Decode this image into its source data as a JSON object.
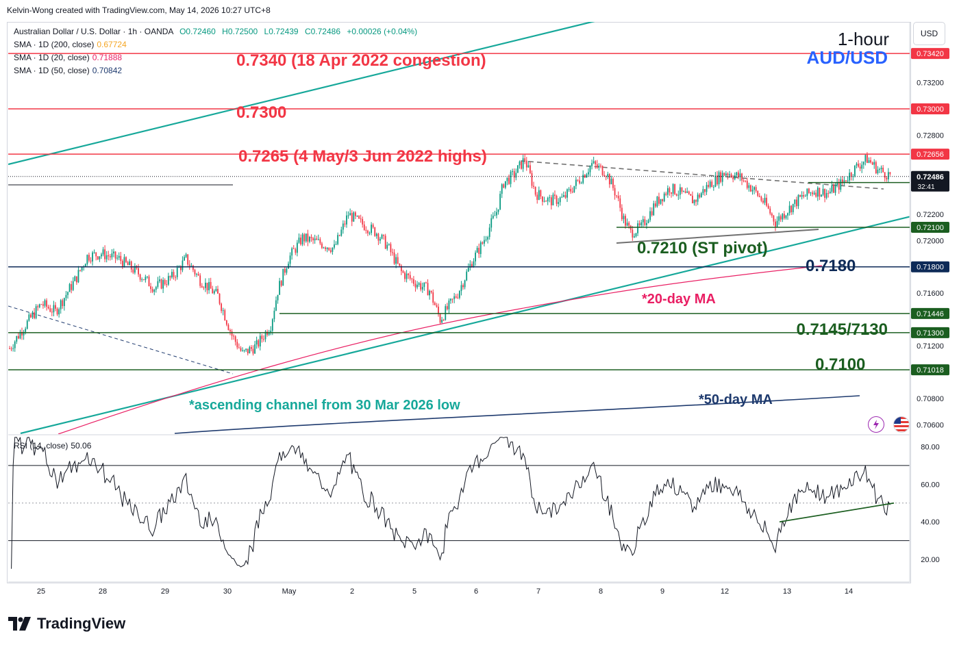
{
  "header": {
    "created_by": "Kelvin-Wong created with TradingView.com, May 14, 2026 10:27 UTC+8"
  },
  "legend": {
    "symbol": "Australian Dollar / U.S. Dollar · 1h · OANDA",
    "open": "O0.72460",
    "high": "H0.72500",
    "low": "L0.72439",
    "close": "C0.72486",
    "change": "+0.00026 (+0.04%)",
    "sma200_label": "SMA · 1D (200, close)",
    "sma200_value": "0.67724",
    "sma20_label": "SMA · 1D (20, close)",
    "sma20_value": "0.71888",
    "sma50_label": "SMA · 1D (50, close)",
    "sma50_value": "0.70842",
    "rsi_label": "RSI (14, close)",
    "rsi_value": "50.06"
  },
  "currency_button": "USD",
  "brand": "TradingView",
  "colors": {
    "up": "#089981",
    "down": "#f23645",
    "resistance": "#f23645",
    "support": "#1b5e20",
    "navy": "#0d2a57",
    "channel": "#16a89a",
    "ma20": "#e91e63",
    "ma50": "#1e3a6e",
    "sma200_legend": "#f5a623",
    "title_blue": "#2962ff"
  },
  "chart_data": [
    {
      "type": "line",
      "subtype": "candlestick",
      "title": "1-hour",
      "subtitle": "AUD/USD",
      "x_ticks": [
        "25",
        "28",
        "29",
        "30",
        "May",
        "2",
        "5",
        "6",
        "7",
        "8",
        "9",
        "12",
        "13",
        "14"
      ],
      "y_ticks": [
        "0.70600",
        "0.70800",
        "0.71200",
        "0.71600",
        "0.72000",
        "0.72200",
        "0.72800",
        "0.73200"
      ],
      "ylim": [
        0.7053,
        0.7366
      ],
      "close_path": [
        [
          0,
          0.7118
        ],
        [
          8,
          0.7134
        ],
        [
          18,
          0.7152
        ],
        [
          26,
          0.7146
        ],
        [
          38,
          0.7172
        ],
        [
          44,
          0.7188
        ],
        [
          52,
          0.719
        ],
        [
          62,
          0.7186
        ],
        [
          74,
          0.7174
        ],
        [
          82,
          0.7164
        ],
        [
          92,
          0.7172
        ],
        [
          100,
          0.7186
        ],
        [
          108,
          0.717
        ],
        [
          118,
          0.7158
        ],
        [
          126,
          0.7128
        ],
        [
          132,
          0.7114
        ],
        [
          140,
          0.712
        ],
        [
          148,
          0.7136
        ],
        [
          152,
          0.7162
        ],
        [
          158,
          0.7186
        ],
        [
          166,
          0.7202
        ],
        [
          176,
          0.7198
        ],
        [
          184,
          0.7194
        ],
        [
          192,
          0.722
        ],
        [
          198,
          0.7214
        ],
        [
          208,
          0.7206
        ],
        [
          214,
          0.7196
        ],
        [
          222,
          0.7176
        ],
        [
          230,
          0.7168
        ],
        [
          238,
          0.7162
        ],
        [
          244,
          0.714
        ],
        [
          254,
          0.716
        ],
        [
          262,
          0.7184
        ],
        [
          268,
          0.7198
        ],
        [
          272,
          0.721
        ],
        [
          276,
          0.7222
        ],
        [
          280,
          0.7244
        ],
        [
          286,
          0.725
        ],
        [
          292,
          0.7262
        ],
        [
          298,
          0.7236
        ],
        [
          306,
          0.723
        ],
        [
          314,
          0.7232
        ],
        [
          324,
          0.7248
        ],
        [
          330,
          0.7258
        ],
        [
          338,
          0.7252
        ],
        [
          344,
          0.7234
        ],
        [
          348,
          0.7216
        ],
        [
          352,
          0.7206
        ],
        [
          358,
          0.721
        ],
        [
          366,
          0.7228
        ],
        [
          374,
          0.724
        ],
        [
          380,
          0.7236
        ],
        [
          388,
          0.723
        ],
        [
          396,
          0.7242
        ],
        [
          406,
          0.7252
        ],
        [
          414,
          0.7248
        ],
        [
          422,
          0.7238
        ],
        [
          428,
          0.7228
        ],
        [
          434,
          0.7214
        ],
        [
          440,
          0.7222
        ],
        [
          448,
          0.7232
        ],
        [
          456,
          0.7238
        ],
        [
          464,
          0.7236
        ],
        [
          472,
          0.7244
        ],
        [
          480,
          0.7256
        ],
        [
          486,
          0.7262
        ],
        [
          492,
          0.7254
        ],
        [
          498,
          0.725
        ]
      ],
      "horizontal_levels": [
        {
          "value": 0.7342,
          "tag": "0.73420",
          "label": "0.7340 (18 Apr 2022 congestion)",
          "role": "resistance"
        },
        {
          "value": 0.73,
          "tag": "0.73000",
          "label": "0.7300",
          "role": "resistance"
        },
        {
          "value": 0.72656,
          "tag": "0.72656",
          "label": "0.7265 (4 May/3 Jun 2022 highs)",
          "role": "resistance"
        },
        {
          "value": 0.7244,
          "tag": "0.72440",
          "label": "",
          "role": "support"
        },
        {
          "value": 0.721,
          "tag": "0.72100",
          "label": "0.7210 (ST pivot)",
          "role": "support"
        },
        {
          "value": 0.718,
          "tag": "0.71800",
          "label": "0.7180",
          "role": "navy"
        },
        {
          "value": 0.71446,
          "tag": "0.71446",
          "label": "0.7145/7130",
          "role": "support"
        },
        {
          "value": 0.713,
          "tag": "0.71300",
          "label": "",
          "role": "support"
        },
        {
          "value": 0.71018,
          "tag": "0.71018",
          "label": "0.7100",
          "role": "support"
        }
      ],
      "current_price": {
        "value": 0.72486,
        "tag": "0.72486",
        "countdown": "32:41"
      },
      "annotations": [
        "*20-day MA",
        "*ascending channel from 30 Mar 2026 low",
        "*50-day MA"
      ]
    },
    {
      "type": "line",
      "title": "RSI (14, close)",
      "y_ticks": [
        "80.00",
        "60.00",
        "40.00",
        "20.00"
      ],
      "ylim": [
        8,
        86
      ],
      "bands": [
        30,
        70
      ],
      "midline": 50,
      "last_value": 50.06
    }
  ]
}
